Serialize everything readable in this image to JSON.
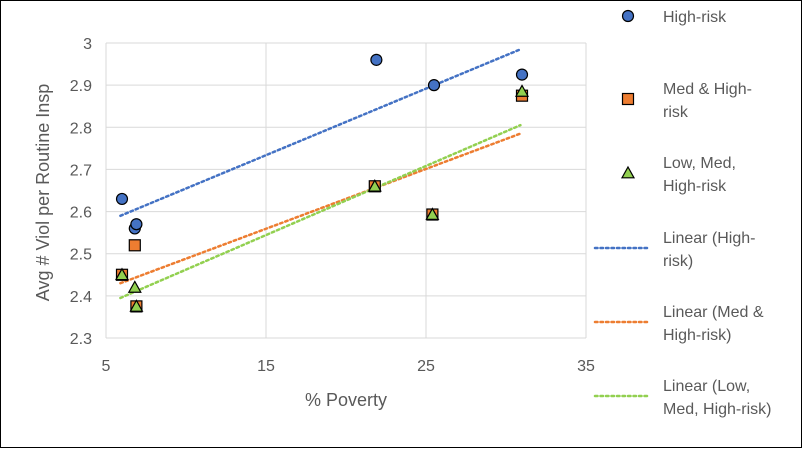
{
  "chart_data": {
    "type": "scatter",
    "xlabel": "% Poverty",
    "ylabel": "Avg # Viol per Routine Insp",
    "xlim": [
      5,
      35
    ],
    "ylim": [
      2.3,
      3.0
    ],
    "x_ticks": [
      "5",
      "15",
      "25",
      "35"
    ],
    "y_ticks": [
      "2.3",
      "2.4",
      "2.5",
      "2.6",
      "2.7",
      "2.8",
      "2.9",
      "3"
    ],
    "grid": true,
    "legend_position": "right",
    "series": [
      {
        "name": "High-risk",
        "marker": "circle",
        "color": "#4472C4",
        "points": [
          [
            6.0,
            2.63
          ],
          [
            6.8,
            2.56
          ],
          [
            6.9,
            2.57
          ],
          [
            21.9,
            2.96
          ],
          [
            25.5,
            2.9
          ],
          [
            31.0,
            2.925
          ]
        ]
      },
      {
        "name": "Med & High-risk",
        "marker": "square",
        "color": "#ED7D31",
        "points": [
          [
            6.0,
            2.45
          ],
          [
            6.8,
            2.52
          ],
          [
            6.9,
            2.375
          ],
          [
            21.8,
            2.66
          ],
          [
            25.4,
            2.593
          ],
          [
            31.0,
            2.875
          ]
        ]
      },
      {
        "name": "Low, Med, High-risk",
        "marker": "triangle",
        "color": "#92D050",
        "points": [
          [
            6.0,
            2.45
          ],
          [
            6.8,
            2.42
          ],
          [
            6.9,
            2.375
          ],
          [
            21.8,
            2.66
          ],
          [
            25.4,
            2.593
          ],
          [
            31.0,
            2.885
          ]
        ]
      }
    ],
    "trendlines": [
      {
        "name": "Linear (High-risk)",
        "color": "#4472C4",
        "x": [
          5.9,
          30.9
        ],
        "y": [
          2.59,
          2.985
        ]
      },
      {
        "name": "Linear (Med & High-risk)",
        "color": "#ED7D31",
        "x": [
          5.9,
          30.9
        ],
        "y": [
          2.43,
          2.785
        ]
      },
      {
        "name": "Linear (Low, Med, High-risk)",
        "color": "#92D050",
        "x": [
          5.9,
          30.9
        ],
        "y": [
          2.395,
          2.805
        ]
      }
    ],
    "legend": [
      {
        "kind": "marker",
        "marker": "circle",
        "color": "#4472C4",
        "lines": [
          "High-risk"
        ]
      },
      {
        "kind": "marker",
        "marker": "square",
        "color": "#ED7D31",
        "lines": [
          "Med & High-",
          "risk"
        ]
      },
      {
        "kind": "marker",
        "marker": "triangle",
        "color": "#92D050",
        "lines": [
          "Low, Med,",
          "High-risk"
        ]
      },
      {
        "kind": "line",
        "color": "#4472C4",
        "lines": [
          "Linear (High-",
          "risk)"
        ]
      },
      {
        "kind": "line",
        "color": "#ED7D31",
        "lines": [
          "Linear (Med &",
          "High-risk)"
        ]
      },
      {
        "kind": "line",
        "color": "#92D050",
        "lines": [
          "Linear (Low,",
          "Med, High-risk)"
        ]
      }
    ]
  }
}
